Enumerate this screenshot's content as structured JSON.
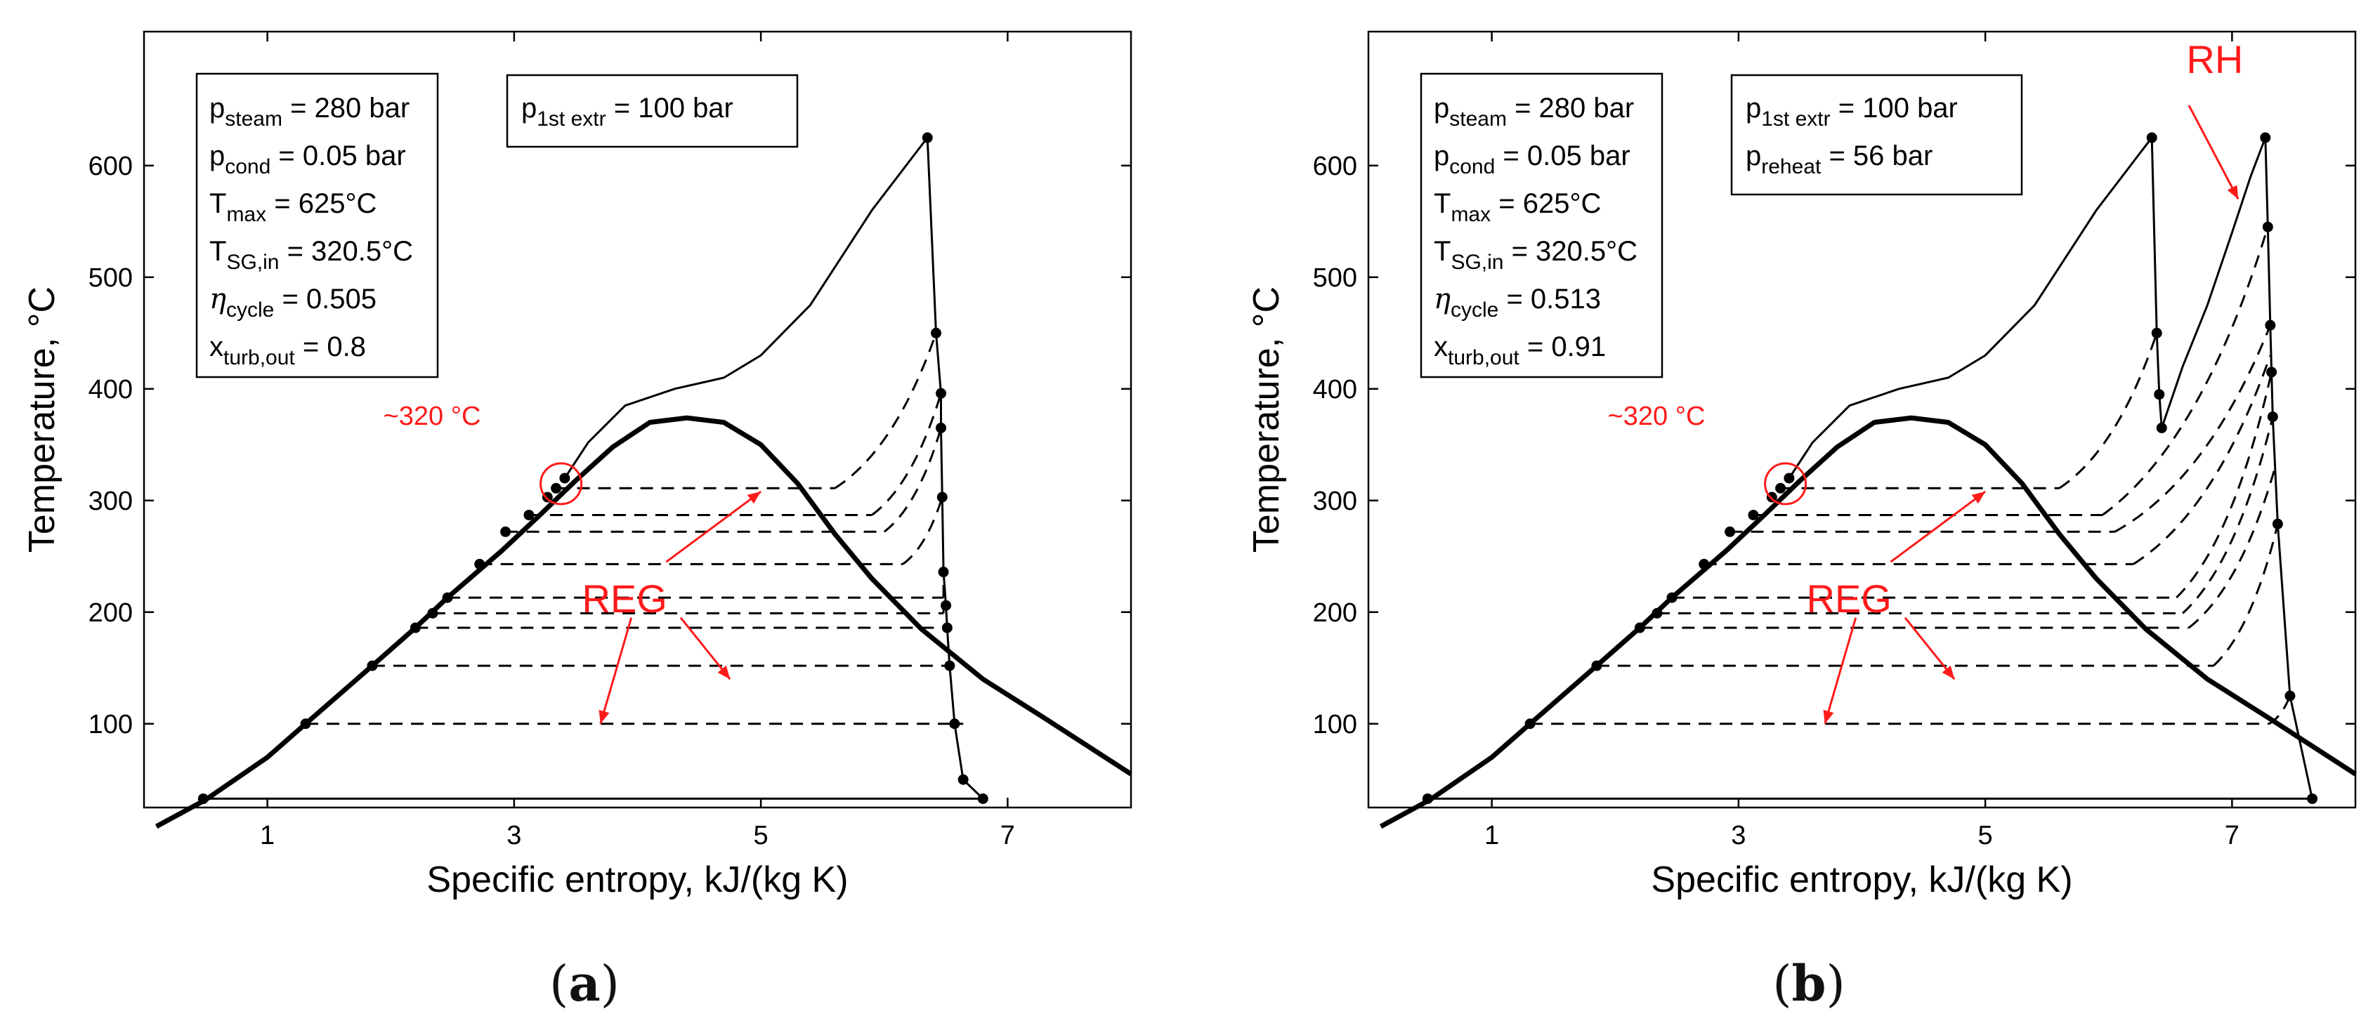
{
  "figure": {
    "panels": [
      {
        "label_prefix": "(",
        "label": "a",
        "label_suffix": ")",
        "info_box": [
          {
            "main": "p",
            "sub": "steam",
            "rest": " = 280 bar"
          },
          {
            "main": "p",
            "sub": "cond",
            "rest": " = 0.05 bar"
          },
          {
            "main": "T",
            "sub": "max",
            "rest": " = 625°C"
          },
          {
            "main": "T",
            "sub": "SG,in",
            "rest": " = 320.5°C"
          },
          {
            "main": "η",
            "sub": "cycle",
            "rest": " = 0.505"
          },
          {
            "main": "x",
            "sub": "turb,out",
            "rest": " = 0.8"
          }
        ],
        "pressure_box": [
          {
            "main": "p",
            "sub": "1st extr",
            "rest": " = 100 bar"
          }
        ],
        "annotations": {
          "circle_temp": "~320 °C",
          "reg": "REG"
        }
      },
      {
        "label_prefix": "(",
        "label": "b",
        "label_suffix": ")",
        "info_box": [
          {
            "main": "p",
            "sub": "steam",
            "rest": " = 280 bar"
          },
          {
            "main": "p",
            "sub": "cond",
            "rest": " = 0.05 bar"
          },
          {
            "main": "T",
            "sub": "max",
            "rest": " = 625°C"
          },
          {
            "main": "T",
            "sub": "SG,in",
            "rest": " = 320.5°C"
          },
          {
            "main": "η",
            "sub": "cycle",
            "rest": " = 0.513"
          },
          {
            "main": "x",
            "sub": "turb,out",
            "rest": " = 0.91"
          }
        ],
        "pressure_box": [
          {
            "main": "p",
            "sub": "1st extr",
            "rest": " = 100 bar"
          },
          {
            "main": "p",
            "sub": "reheat",
            "rest": " = 56 bar"
          }
        ],
        "annotations": {
          "circle_temp": "~320 °C",
          "reg": "REG",
          "rh": "RH"
        }
      }
    ]
  },
  "colors": {
    "annotation": "#ff1a1a",
    "line": "#000000"
  },
  "chart_data": [
    {
      "type": "line",
      "xlabel": "Specific entropy, kJ/(kg K)",
      "ylabel": "Temperature, °C",
      "xlim": [
        0,
        8
      ],
      "ylim": [
        25,
        720
      ],
      "xticks": [
        1,
        3,
        5,
        7
      ],
      "yticks": [
        100,
        200,
        300,
        400,
        500,
        600
      ],
      "grid": false,
      "dome": {
        "x": [
          0.1,
          0.5,
          1.0,
          1.31,
          1.85,
          2.2,
          2.46,
          2.9,
          3.2,
          3.5,
          3.8,
          4.1,
          4.4,
          4.7,
          5.0,
          5.3,
          5.6,
          5.9,
          6.3,
          6.8,
          7.3,
          8.0
        ],
        "y": [
          8,
          32,
          70,
          100,
          152,
          186,
          213,
          255,
          286,
          318,
          348,
          370,
          374,
          370,
          350,
          315,
          270,
          230,
          185,
          140,
          105,
          55
        ]
      },
      "heating_curve": {
        "x": [
          3.41,
          3.6,
          3.9,
          4.3,
          4.7,
          5.0,
          5.4,
          5.9,
          6.35
        ],
        "y": [
          320,
          352,
          385,
          400,
          410,
          430,
          475,
          560,
          625
        ]
      },
      "condenser_line": {
        "x": [
          0.48,
          6.8
        ],
        "y": [
          32.9,
          32.9
        ]
      },
      "turbine_expansion": {
        "x": [
          6.35,
          6.42,
          6.46,
          6.46,
          6.47,
          6.48,
          6.5,
          6.51,
          6.53,
          6.57,
          6.64,
          6.8
        ],
        "y": [
          625,
          450,
          396,
          365,
          303,
          236,
          206,
          186,
          152,
          100,
          50,
          32.9
        ]
      },
      "pump_points": {
        "x": [
          0.48,
          1.31,
          1.85,
          2.2,
          2.34,
          2.46,
          2.72,
          2.93,
          3.12,
          3.27,
          3.34,
          3.41
        ],
        "y": [
          32.9,
          100,
          152,
          186,
          199,
          213,
          243,
          272,
          287,
          303,
          311,
          320
        ]
      },
      "extractions": {
        "temperature": [
          311,
          287,
          272,
          243,
          213,
          199,
          186,
          152,
          100
        ],
        "pump_side_s": [
          3.34,
          3.12,
          2.93,
          2.72,
          2.46,
          2.34,
          2.2,
          1.85,
          1.31
        ],
        "vapor_side_s": [
          5.6,
          5.9,
          6.0,
          6.15,
          6.48,
          6.48,
          6.51,
          6.53,
          6.64
        ],
        "turbine_s": [
          6.42,
          6.46,
          6.46,
          6.47,
          6.48,
          6.48,
          6.51,
          6.53,
          6.64
        ],
        "turbine_T": [
          450,
          396,
          365,
          303,
          236,
          206,
          186,
          152,
          100
        ]
      }
    },
    {
      "type": "line",
      "xlabel": "Specific entropy, kJ/(kg K)",
      "ylabel": "Temperature, °C",
      "xlim": [
        0,
        8
      ],
      "ylim": [
        25,
        720
      ],
      "xticks": [
        1,
        3,
        5,
        7
      ],
      "yticks": [
        100,
        200,
        300,
        400,
        500,
        600
      ],
      "grid": false,
      "dome": {
        "x": [
          0.1,
          0.5,
          1.0,
          1.31,
          1.85,
          2.2,
          2.46,
          2.9,
          3.2,
          3.5,
          3.8,
          4.1,
          4.4,
          4.7,
          5.0,
          5.3,
          5.6,
          5.9,
          6.3,
          6.8,
          7.3,
          8.0
        ],
        "y": [
          8,
          32,
          70,
          100,
          152,
          186,
          213,
          255,
          286,
          318,
          348,
          370,
          374,
          370,
          350,
          315,
          270,
          230,
          185,
          140,
          105,
          55
        ]
      },
      "heating_curve": {
        "x": [
          3.41,
          3.6,
          3.9,
          4.3,
          4.7,
          5.0,
          5.4,
          5.9,
          6.35
        ],
        "y": [
          320,
          352,
          385,
          400,
          410,
          430,
          475,
          560,
          625
        ]
      },
      "hp_expansion": {
        "x": [
          6.35,
          6.39,
          6.41,
          6.43
        ],
        "y": [
          625,
          450,
          395,
          365
        ]
      },
      "reheat_curve": {
        "x": [
          6.43,
          6.6,
          6.8,
          7.0,
          7.15,
          7.27
        ],
        "y": [
          365,
          420,
          475,
          540,
          590,
          625
        ]
      },
      "lp_expansion": {
        "x": [
          7.27,
          7.29,
          7.31,
          7.32,
          7.33,
          7.37,
          7.47,
          7.65
        ],
        "y": [
          625,
          545,
          457,
          415,
          375,
          279,
          125,
          32.9
        ]
      },
      "condenser_line": {
        "x": [
          0.48,
          7.65
        ],
        "y": [
          32.9,
          32.9
        ]
      },
      "pump_points": {
        "x": [
          0.48,
          1.31,
          1.85,
          2.2,
          2.34,
          2.46,
          2.72,
          2.93,
          3.12,
          3.27,
          3.34,
          3.41
        ],
        "y": [
          32.9,
          100,
          152,
          186,
          199,
          213,
          243,
          272,
          287,
          303,
          311,
          320
        ]
      },
      "extractions": {
        "temperature": [
          311,
          287,
          272,
          243,
          213,
          199,
          186,
          152,
          100
        ],
        "pump_side_s": [
          3.34,
          3.12,
          2.93,
          2.72,
          2.46,
          2.34,
          2.2,
          1.85,
          1.31
        ],
        "vapor_side_s": [
          5.6,
          5.95,
          6.05,
          6.2,
          6.55,
          6.6,
          6.65,
          6.85,
          7.3
        ],
        "turbine_s": [
          6.39,
          7.29,
          7.31,
          7.31,
          7.32,
          7.33,
          7.35,
          7.37,
          7.47
        ],
        "turbine_T": [
          450,
          545,
          457,
          430,
          415,
          375,
          330,
          279,
          125
        ]
      }
    }
  ]
}
